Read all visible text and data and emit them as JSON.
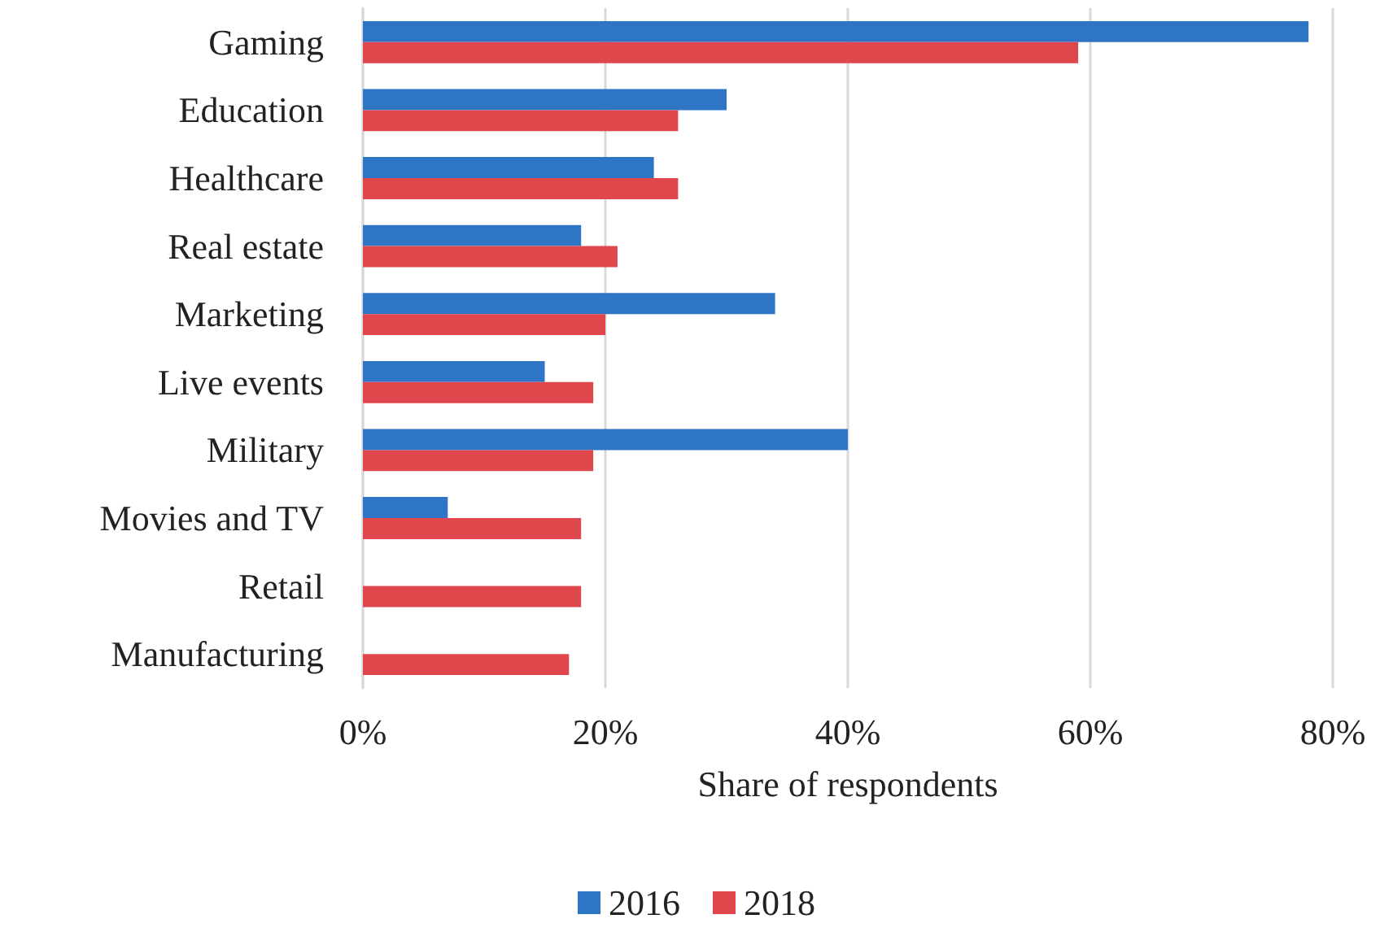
{
  "chart_data": {
    "type": "bar",
    "orientation": "horizontal",
    "xlabel": "Share of respondents",
    "categories": [
      "Gaming",
      "Education",
      "Healthcare",
      "Real estate",
      "Marketing",
      "Live events",
      "Military",
      "Movies and TV",
      "Retail",
      "Manufacturing"
    ],
    "series": [
      {
        "name": "2016",
        "color": "#2e75c6",
        "values": [
          78,
          30,
          24,
          18,
          34,
          15,
          40,
          7,
          null,
          null
        ]
      },
      {
        "name": "2018",
        "color": "#e0474c",
        "values": [
          59,
          26,
          26,
          21,
          20,
          19,
          19,
          18,
          18,
          17
        ]
      }
    ],
    "xlim": [
      0,
      80
    ],
    "xticks": [
      {
        "value": 0,
        "label": "0%"
      },
      {
        "value": 20,
        "label": "20%"
      },
      {
        "value": 40,
        "label": "40%"
      },
      {
        "value": 60,
        "label": "60%"
      },
      {
        "value": 80,
        "label": "80%"
      }
    ],
    "grid": "x",
    "legend": "bottom"
  }
}
